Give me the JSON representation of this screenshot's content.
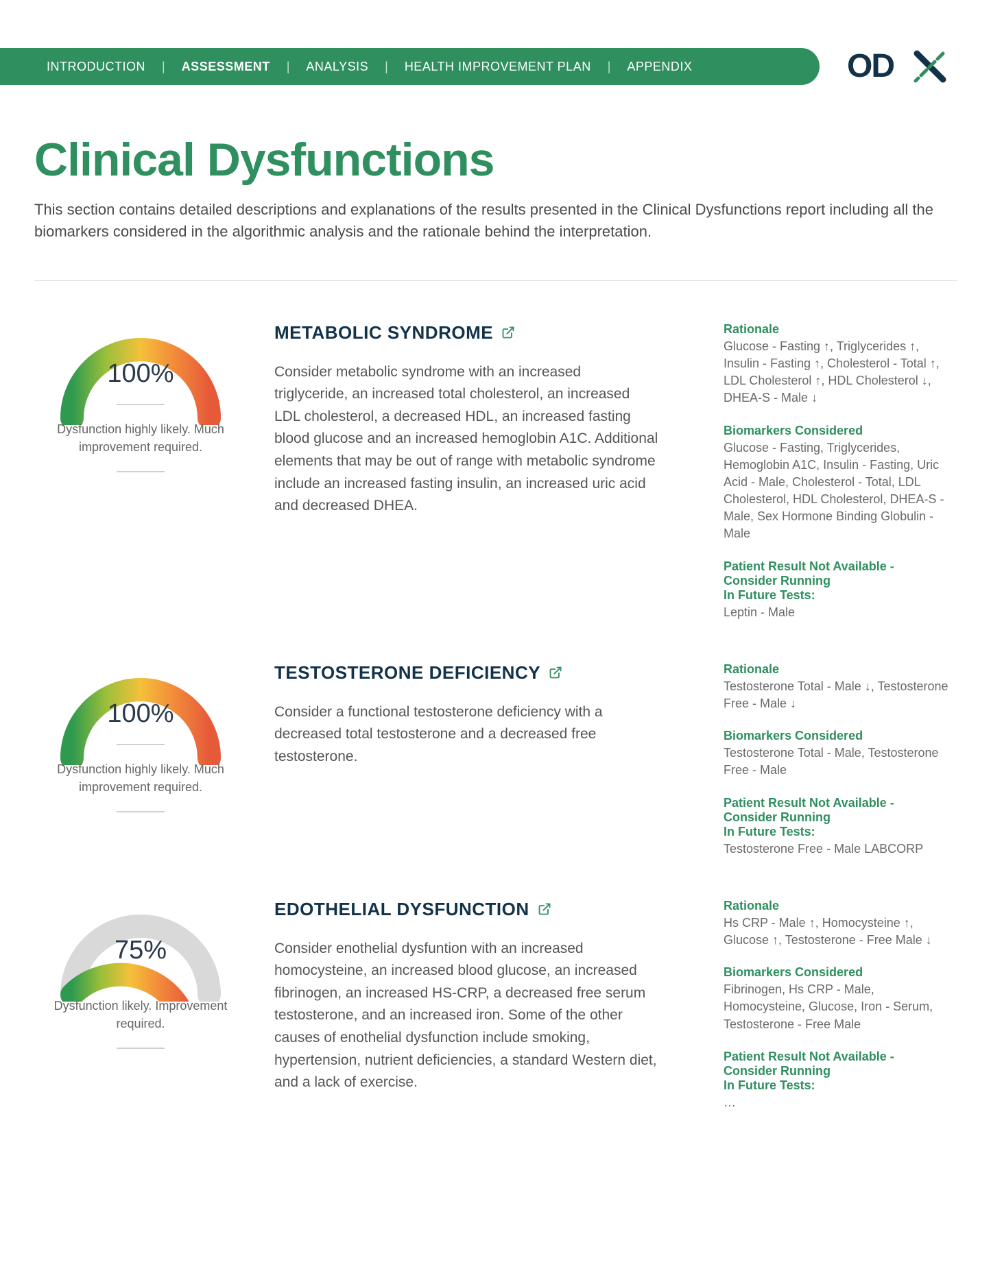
{
  "brand": {
    "name": "ODX",
    "logo_dark": "#12324a",
    "logo_accent": "#2f8f5f"
  },
  "colors": {
    "green": "#2f8f5f",
    "title_green": "#2f8f5f",
    "heading_navy": "#12324a",
    "body_gray": "#555555",
    "muted_gray": "#6a6a6a",
    "rule_gray": "#d9d9d9",
    "page_bg": "#ffffff",
    "gauge_gradient": [
      "#2f9a4f",
      "#9cbf3a",
      "#f4c03a",
      "#f28a3a",
      "#e65a3a"
    ],
    "gauge_track": "#d9d9d9"
  },
  "nav": {
    "items": [
      {
        "label": "INTRODUCTION",
        "active": false
      },
      {
        "label": "ASSESSMENT",
        "active": true
      },
      {
        "label": "ANALYSIS",
        "active": false
      },
      {
        "label": "HEALTH IMPROVEMENT PLAN",
        "active": false
      },
      {
        "label": "APPENDIX",
        "active": false
      }
    ]
  },
  "page_title": "Clinical Dysfunctions",
  "intro": "This section contains detailed descriptions and explanations of the results presented in the Clinical Dysfunctions report including all the biomarkers considered in the algorithmic analysis and the rationale behind the interpretation.",
  "side_headings": {
    "rationale": "Rationale",
    "biomarkers": "Biomarkers Considered",
    "not_available_l1": "Patient Result Not Available -",
    "not_available_l2": "Consider Running",
    "not_available_l3": "In Future Tests:"
  },
  "dysfunctions": [
    {
      "title": "METABOLIC SYNDROME",
      "percent": 100,
      "percent_label": "100%",
      "caption": "Dysfunction highly likely. Much improvement required.",
      "body": "Consider metabolic syndrome with an increased triglyceride, an increased total cholesterol, an increased LDL cholesterol, a decreased HDL, an increased fasting blood glucose and an increased hemoglobin A1C. Additional elements that may be out of range with metabolic syndrome include an increased fasting insulin, an increased uric acid and decreased DHEA.",
      "rationale": "Glucose - Fasting ↑, Triglycerides ↑, Insulin - Fasting ↑, Cholesterol - Total ↑, LDL Cholesterol ↑, HDL Cholesterol ↓, DHEA-S - Male ↓",
      "biomarkers": "Glucose - Fasting, Triglycerides, Hemoglobin A1C, Insulin - Fasting, Uric Acid - Male, Cholesterol - Total, LDL Cholesterol, HDL Cholesterol, DHEA-S - Male, Sex Hormone Binding Globulin - Male",
      "future": "Leptin - Male"
    },
    {
      "title": "TESTOSTERONE DEFICIENCY",
      "percent": 100,
      "percent_label": "100%",
      "caption": "Dysfunction highly likely. Much improvement required.",
      "body": "Consider a functional testosterone deficiency with a decreased total testosterone and a decreased free testosterone.",
      "rationale": "Testosterone Total - Male ↓, Testosterone Free - Male ↓",
      "biomarkers": "Testosterone Total - Male, Testosterone Free - Male",
      "future": "Testosterone Free - Male LABCORP"
    },
    {
      "title": "EDOTHELIAL DYSFUNCTION",
      "percent": 75,
      "percent_label": "75%",
      "caption": "Dysfunction likely. Improvement required.",
      "body": "Consider enothelial dysfuntion with an increased homocysteine, an increased blood glucose, an increased fibrinogen, an increased HS-CRP, a decreased free serum testosterone, and an increased iron. Some of the other causes of enothelial dysfunction include smoking, hypertension, nutrient deficiencies, a standard Western diet, and a lack of exercise.",
      "rationale": "Hs CRP - Male ↑, Homocysteine ↑, Glucose ↑, Testosterone - Free Male ↓",
      "biomarkers": "Fibrinogen, Hs CRP - Male, Homocysteine, Glucose, Iron - Serum, Testosterone - Free Male",
      "future": "…"
    }
  ]
}
